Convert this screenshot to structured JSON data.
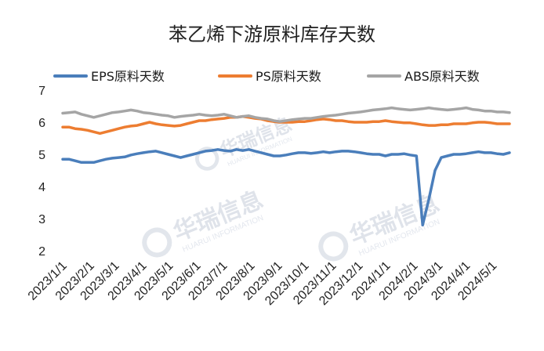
{
  "chart_data": {
    "type": "line",
    "title": "苯乙烯下游原料库存天数",
    "ylim": [
      2,
      7
    ],
    "yticks": [
      "2",
      "3",
      "4",
      "5",
      "6",
      "7"
    ],
    "grid": false,
    "legend_position": "top",
    "watermark": {
      "name": "华瑞信息",
      "sub": "HUARUI INFORMATION"
    },
    "x_labels": [
      "2023/1/1",
      "2023/2/1",
      "2023/3/1",
      "2023/4/1",
      "2023/5/1",
      "2023/6/1",
      "2023/7/1",
      "2023/8/1",
      "2023/9/1",
      "2023/10/1",
      "2023/11/1",
      "2023/12/1",
      "2024/1/1",
      "2024/2/1",
      "2024/3/1",
      "2024/4/1",
      "2024/5/1"
    ],
    "x_label_index": [
      0,
      4.43,
      8.43,
      12.86,
      17.14,
      21.57,
      25.86,
      30.29,
      34.71,
      39,
      43.43,
      47.71,
      52.14,
      56.57,
      60.57,
      65,
      69.29
    ],
    "x_count": 73,
    "series": [
      {
        "name": "EPS原料天数",
        "color": "#4a7ebb",
        "values": [
          4.85,
          4.85,
          4.8,
          4.75,
          4.75,
          4.75,
          4.8,
          4.85,
          4.88,
          4.9,
          4.92,
          4.98,
          5.02,
          5.05,
          5.08,
          5.1,
          5.05,
          5.0,
          4.95,
          4.9,
          4.95,
          5.0,
          5.05,
          5.1,
          5.12,
          5.15,
          5.12,
          5.1,
          5.15,
          5.12,
          5.15,
          5.1,
          5.05,
          5.0,
          4.95,
          4.95,
          4.98,
          5.02,
          5.05,
          5.05,
          5.03,
          5.05,
          5.08,
          5.05,
          5.08,
          5.1,
          5.1,
          5.08,
          5.05,
          5.02,
          5.0,
          5.0,
          4.95,
          5.0,
          5.0,
          5.02,
          4.98,
          4.95,
          2.8,
          3.6,
          4.5,
          4.9,
          4.95,
          5.0,
          5.0,
          5.02,
          5.05,
          5.08,
          5.05,
          5.05,
          5.02,
          5.0,
          5.05
        ]
      },
      {
        "name": "PS原料天数",
        "color": "#ed7d31",
        "values": [
          5.85,
          5.85,
          5.8,
          5.78,
          5.75,
          5.7,
          5.65,
          5.7,
          5.75,
          5.8,
          5.85,
          5.88,
          5.9,
          5.95,
          6.0,
          5.95,
          5.92,
          5.9,
          5.88,
          5.9,
          5.95,
          6.0,
          6.05,
          6.05,
          6.08,
          6.1,
          6.12,
          6.15,
          6.15,
          6.18,
          6.15,
          6.12,
          6.1,
          6.05,
          6.02,
          6.0,
          6.0,
          6.0,
          6.02,
          6.02,
          6.05,
          6.08,
          6.1,
          6.08,
          6.05,
          6.05,
          6.02,
          6.0,
          6.0,
          6.0,
          6.02,
          6.02,
          6.05,
          6.02,
          6.0,
          5.98,
          5.98,
          5.95,
          5.92,
          5.9,
          5.9,
          5.92,
          5.92,
          5.95,
          5.95,
          5.95,
          5.98,
          6.0,
          6.0,
          5.98,
          5.95,
          5.95,
          5.95
        ]
      },
      {
        "name": "ABS原料天数",
        "color": "#a5a5a5",
        "values": [
          6.28,
          6.3,
          6.32,
          6.25,
          6.2,
          6.15,
          6.2,
          6.25,
          6.3,
          6.32,
          6.35,
          6.38,
          6.35,
          6.3,
          6.28,
          6.25,
          6.22,
          6.2,
          6.15,
          6.18,
          6.2,
          6.22,
          6.25,
          6.22,
          6.2,
          6.22,
          6.25,
          6.2,
          6.15,
          6.18,
          6.2,
          6.15,
          6.12,
          6.1,
          6.05,
          6.02,
          6.05,
          6.08,
          6.1,
          6.12,
          6.12,
          6.15,
          6.18,
          6.2,
          6.22,
          6.25,
          6.28,
          6.3,
          6.32,
          6.35,
          6.38,
          6.4,
          6.42,
          6.45,
          6.42,
          6.4,
          6.38,
          6.4,
          6.42,
          6.45,
          6.42,
          6.4,
          6.38,
          6.4,
          6.42,
          6.45,
          6.4,
          6.38,
          6.35,
          6.35,
          6.32,
          6.32,
          6.3
        ]
      }
    ]
  }
}
